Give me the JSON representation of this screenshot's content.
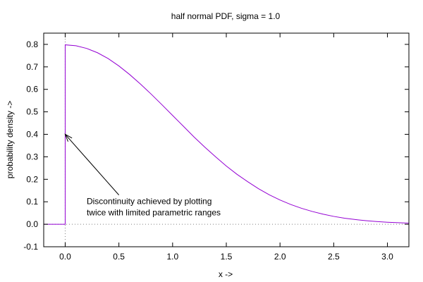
{
  "chart_data": {
    "type": "line",
    "title": "half normal PDF, sigma = 1.0",
    "xlabel": "x ->",
    "ylabel": "probability density ->",
    "xlim": [
      -0.2,
      3.2
    ],
    "ylim": [
      -0.1,
      0.85
    ],
    "x_ticks": [
      {
        "value": 0.0,
        "label": "0.0"
      },
      {
        "value": 0.5,
        "label": "0.5"
      },
      {
        "value": 1.0,
        "label": "1.0"
      },
      {
        "value": 1.5,
        "label": "1.5"
      },
      {
        "value": 2.0,
        "label": "2.0"
      },
      {
        "value": 2.5,
        "label": "2.5"
      },
      {
        "value": 3.0,
        "label": "3.0"
      }
    ],
    "y_ticks": [
      {
        "value": -0.1,
        "label": "-0.1"
      },
      {
        "value": 0.0,
        "label": "0.0"
      },
      {
        "value": 0.1,
        "label": "0.1"
      },
      {
        "value": 0.2,
        "label": "0.2"
      },
      {
        "value": 0.3,
        "label": "0.3"
      },
      {
        "value": 0.4,
        "label": "0.4"
      },
      {
        "value": 0.5,
        "label": "0.5"
      },
      {
        "value": 0.6,
        "label": "0.6"
      },
      {
        "value": 0.7,
        "label": "0.7"
      },
      {
        "value": 0.8,
        "label": "0.8"
      }
    ],
    "grid": false,
    "zero_axes": true,
    "series": [
      {
        "color": "#9400D3",
        "points": [
          {
            "x": -0.2,
            "y": 0.0
          },
          {
            "x": 0.0,
            "y": 0.0
          },
          {
            "x": 0.0,
            "y": 0.798
          },
          {
            "x": 0.1,
            "y": 0.794
          },
          {
            "x": 0.2,
            "y": 0.782
          },
          {
            "x": 0.3,
            "y": 0.763
          },
          {
            "x": 0.4,
            "y": 0.737
          },
          {
            "x": 0.5,
            "y": 0.704
          },
          {
            "x": 0.6,
            "y": 0.666
          },
          {
            "x": 0.7,
            "y": 0.624
          },
          {
            "x": 0.8,
            "y": 0.579
          },
          {
            "x": 0.9,
            "y": 0.532
          },
          {
            "x": 1.0,
            "y": 0.484
          },
          {
            "x": 1.1,
            "y": 0.436
          },
          {
            "x": 1.2,
            "y": 0.388
          },
          {
            "x": 1.3,
            "y": 0.343
          },
          {
            "x": 1.4,
            "y": 0.3
          },
          {
            "x": 1.5,
            "y": 0.259
          },
          {
            "x": 1.6,
            "y": 0.222
          },
          {
            "x": 1.7,
            "y": 0.189
          },
          {
            "x": 1.8,
            "y": 0.158
          },
          {
            "x": 1.9,
            "y": 0.131
          },
          {
            "x": 2.0,
            "y": 0.108
          },
          {
            "x": 2.1,
            "y": 0.088
          },
          {
            "x": 2.2,
            "y": 0.071
          },
          {
            "x": 2.3,
            "y": 0.057
          },
          {
            "x": 2.4,
            "y": 0.045
          },
          {
            "x": 2.5,
            "y": 0.035
          },
          {
            "x": 2.6,
            "y": 0.027
          },
          {
            "x": 2.7,
            "y": 0.021
          },
          {
            "x": 2.8,
            "y": 0.016
          },
          {
            "x": 2.9,
            "y": 0.012
          },
          {
            "x": 3.0,
            "y": 0.009
          },
          {
            "x": 3.1,
            "y": 0.007
          },
          {
            "x": 3.2,
            "y": 0.005
          }
        ]
      }
    ],
    "annotation": {
      "lines": [
        "Discontinuity achieved by plotting",
        "twice with limited parametric ranges"
      ],
      "text_x": 0.2,
      "text_y": 0.09,
      "arrow_from": {
        "x": 0.5,
        "y": 0.13
      },
      "arrow_to": {
        "x": 0.0,
        "y": 0.4
      }
    }
  }
}
